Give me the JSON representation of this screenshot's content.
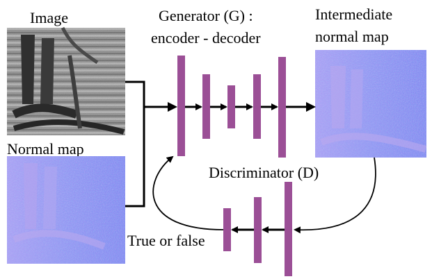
{
  "labels": {
    "image": "Image",
    "normal_map": "Normal map",
    "generator_line1": "Generator (G) :",
    "generator_line2": "encoder - decoder",
    "intermediate_line1": "Intermediate",
    "intermediate_line2": "normal map",
    "discriminator": "Discriminator (D)",
    "true_or_false": "True or false"
  },
  "colors": {
    "layer_bar": "#9b4f96",
    "normal_map_base": "#8a8cf0",
    "image_gray": "#8c8c8c",
    "arrow": "#000000"
  }
}
